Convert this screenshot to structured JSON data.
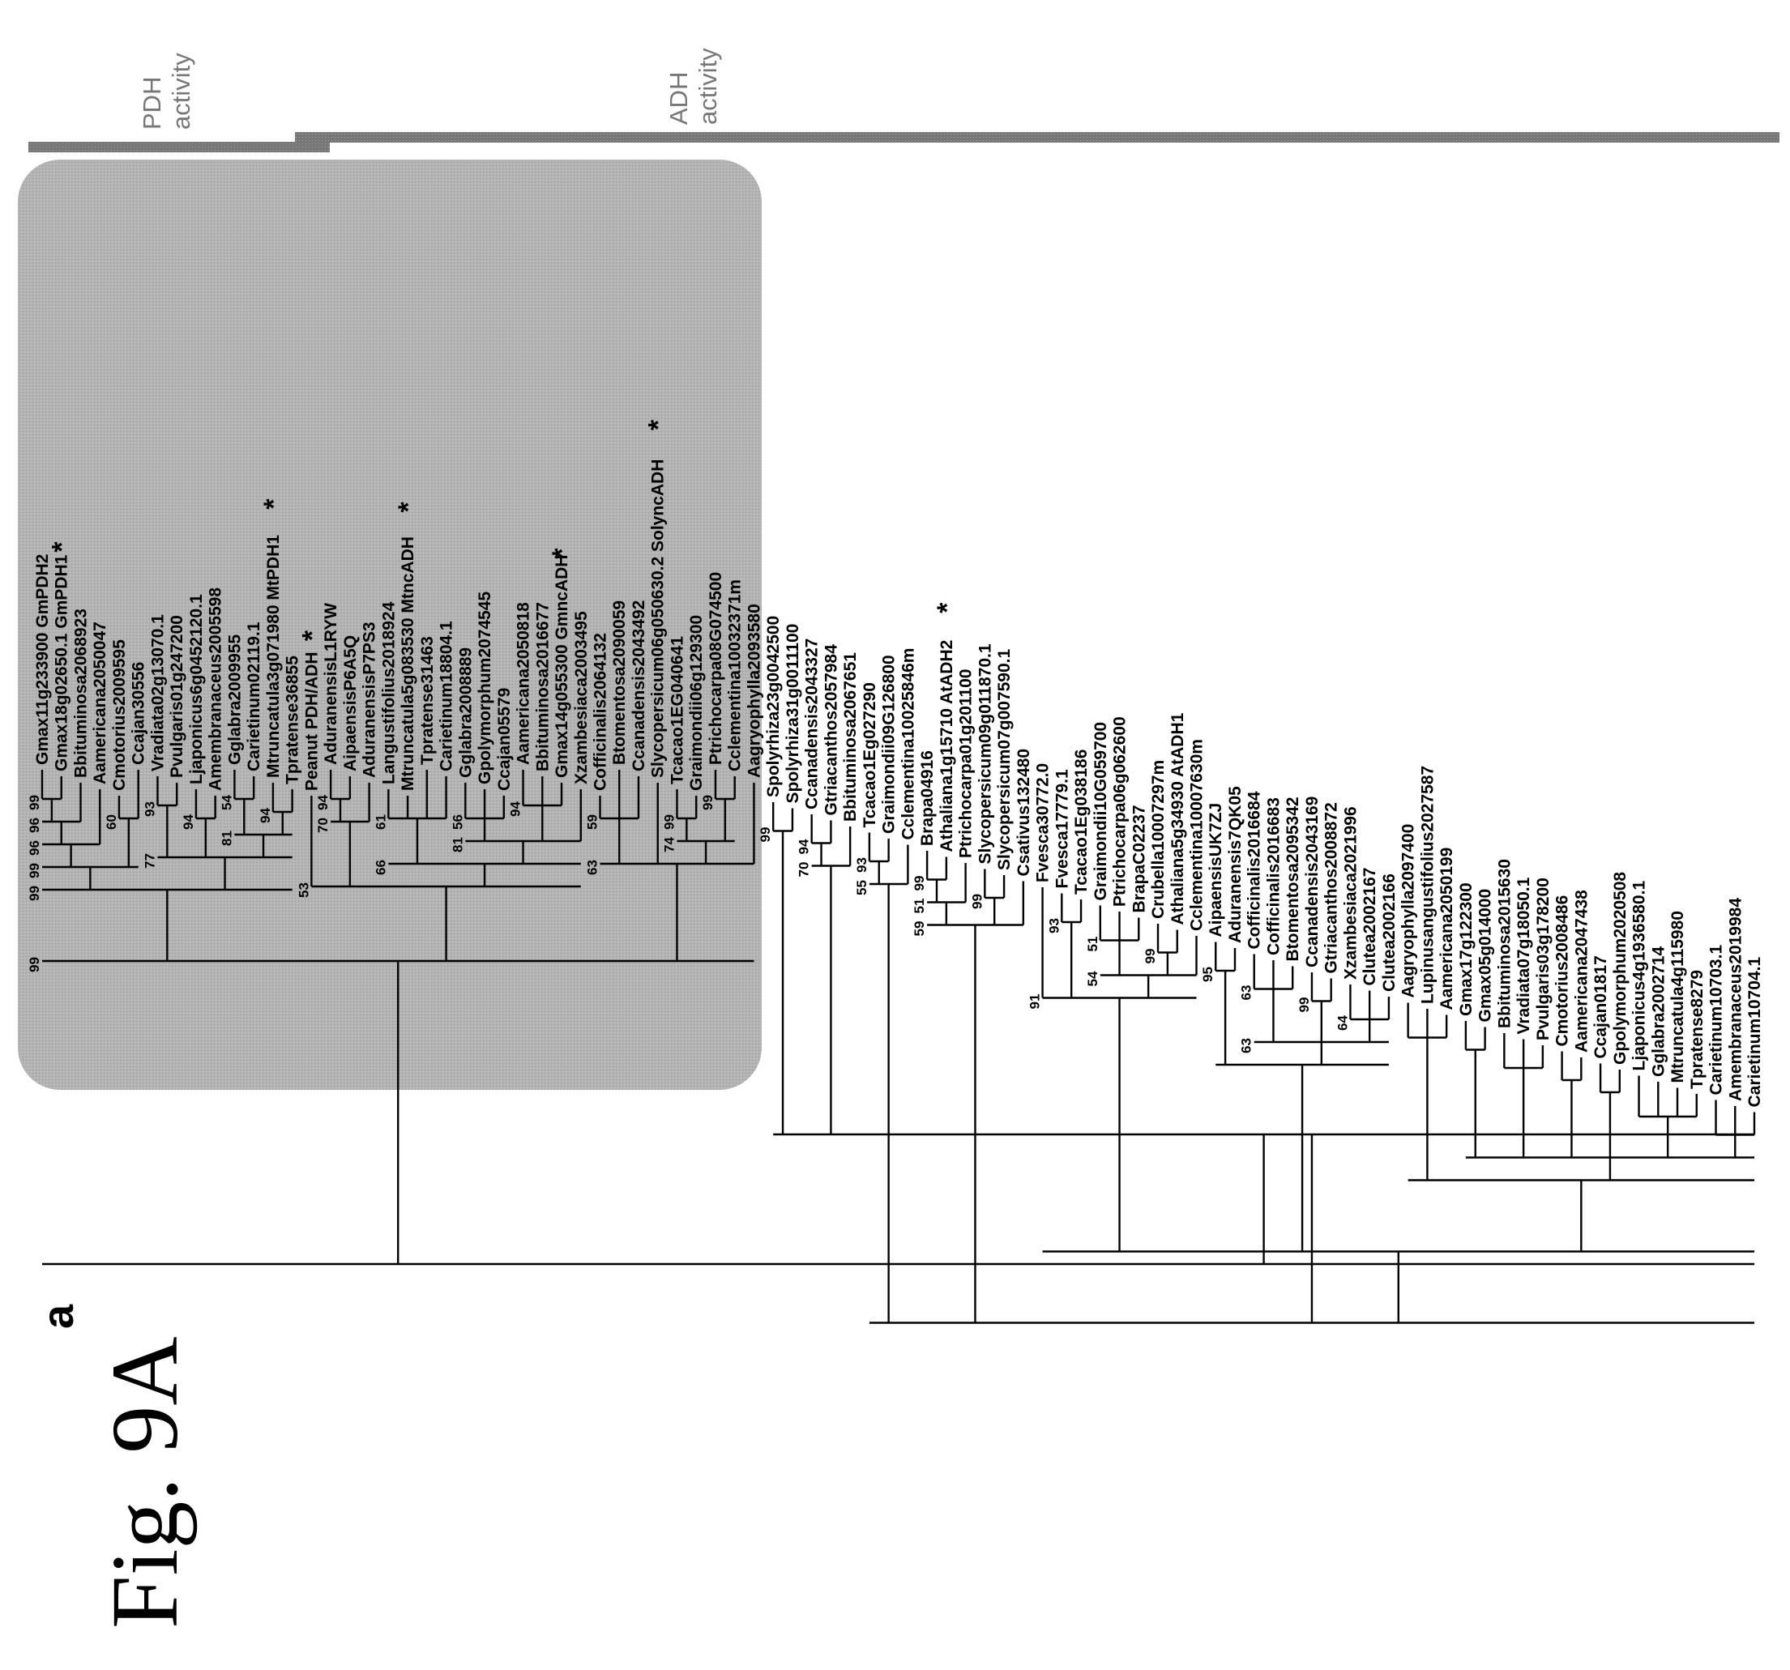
{
  "figure": {
    "caption": "Fig. 9A",
    "panel_label": "a",
    "headers": [
      {
        "line1": "PDH",
        "line2": "activity"
      },
      {
        "line1": "ADH",
        "line2": "activity"
      }
    ],
    "star": "*"
  },
  "tree": {
    "leaves": [
      {
        "label": "Gmax11g233900 GmPDH2"
      },
      {
        "label": "Gmax18g02650.1 GmPDH1",
        "star": true
      },
      {
        "label": "Bbituminosa2068923"
      },
      {
        "label": "Aamericana2050047"
      },
      {
        "label": "Cmotorius2009595"
      },
      {
        "label": "Ccajan30556"
      },
      {
        "label": "Vradiata02g13070.1"
      },
      {
        "label": "Pvulgaris01g247200"
      },
      {
        "label": "Ljaponicus6g0452120.1"
      },
      {
        "label": "Amembranaceus2005598"
      },
      {
        "label": "Gglabra2009955"
      },
      {
        "label": "Carietinum02119.1"
      },
      {
        "label": "Mtruncatula3g071980 MtPDH1",
        "star": true
      },
      {
        "label": "Tpratense36855"
      },
      {
        "label": "Peanut PDH/ADH",
        "star": true
      },
      {
        "label": "AduranensisL1RYW"
      },
      {
        "label": "AipaensisP6A5Q"
      },
      {
        "label": "AduranensisP7PS3"
      },
      {
        "label": "Langustifolius2018924"
      },
      {
        "label": "Mtruncatula5g083530 MtncADH",
        "star": true
      },
      {
        "label": "Tpratense31463"
      },
      {
        "label": "Carietinum18804.1"
      },
      {
        "label": "Gglabra2008889"
      },
      {
        "label": "Gpolymorphum2074545"
      },
      {
        "label": "Ccajan05579"
      },
      {
        "label": "Aamericana2050818"
      },
      {
        "label": "Bbituminosa2016677"
      },
      {
        "label": "Gmax14g055300 GmncADH",
        "star": true
      },
      {
        "label": "Xzambesiaca2003495"
      },
      {
        "label": "Cofficinalis2064132"
      },
      {
        "label": "Btomentosa2090059"
      },
      {
        "label": "Ccanadensis2043492"
      },
      {
        "label": "Slycopersicum06g050630.2 SolyncADH",
        "star": true
      },
      {
        "label": "Tcacao1EG040641"
      },
      {
        "label": "Graimondii06g129300"
      },
      {
        "label": "Ptrichocarpa08G074500"
      },
      {
        "label": "Cclementina10032371m"
      },
      {
        "label": "Aagryophylla2093580"
      },
      {
        "label": "Spolyrhiza23g0042500"
      },
      {
        "label": "Spolyrhiza31g0011100"
      },
      {
        "label": "Ccanadensis2043327"
      },
      {
        "label": "Gtriacanthos2057984"
      },
      {
        "label": "Bbituminosa2067651"
      },
      {
        "label": "Tcacao1Eg027290"
      },
      {
        "label": "Graimondii09G126800"
      },
      {
        "label": "Cclementina10025846m"
      },
      {
        "label": "Brapa04916"
      },
      {
        "label": "Athaliana1g15710 AtADH2",
        "star": true
      },
      {
        "label": "Ptrichocarpa01g201100"
      },
      {
        "label": "Slycopersicum09g011870.1"
      },
      {
        "label": "Slycopersicum07g007590.1"
      },
      {
        "label": "Csativus132480"
      },
      {
        "label": "Fvesca30772.0"
      },
      {
        "label": "Fvesca17779.1"
      },
      {
        "label": "Tcacao1Eg038186"
      },
      {
        "label": "Graimondii10G059700"
      },
      {
        "label": "Ptrichocarpa06g062600"
      },
      {
        "label": "BrapaC02237"
      },
      {
        "label": "Crubella10007297m"
      },
      {
        "label": "Athaliana5g34930 AtADH1"
      },
      {
        "label": "Cclementina10007630m"
      },
      {
        "label": "AipaensisUK7ZJ"
      },
      {
        "label": "Aduranensis7QK05"
      },
      {
        "label": "Cofficinalis2016684"
      },
      {
        "label": "Cofficinalis2016683"
      },
      {
        "label": "Btomentosa2095342"
      },
      {
        "label": "Ccanadensis2043169"
      },
      {
        "label": "Gtriacanthos2008872"
      },
      {
        "label": "Xzambesiaca2021996"
      },
      {
        "label": "Clutea2002167"
      },
      {
        "label": "Clutea2002166"
      },
      {
        "label": "Aagryophylla2097400"
      },
      {
        "label": "Lupinusangustifolius2027587"
      },
      {
        "label": "Aamericana2050199"
      },
      {
        "label": "Gmax17g122300"
      },
      {
        "label": "Gmax05g014000"
      },
      {
        "label": "Bbituminosa2015630"
      },
      {
        "label": "Vradiata07g18050.1"
      },
      {
        "label": "Pvulgaris03g178200"
      },
      {
        "label": "Cmotorius2008486"
      },
      {
        "label": "Aamericana2047438"
      },
      {
        "label": "Ccajan01817"
      },
      {
        "label": "Gpolymorphum2020508"
      },
      {
        "label": "Ljaponicus4g1936580.1"
      },
      {
        "label": "Gglabra2002714"
      },
      {
        "label": "Mtruncatula4g115980"
      },
      {
        "label": "Tpratense8279"
      },
      {
        "label": "Carietinum10703.1"
      },
      {
        "label": "Amembranaceus2019984"
      },
      {
        "label": "Carietinum10704.1"
      }
    ],
    "bootstrap": [
      "99",
      "96",
      "96",
      "60",
      "99",
      "93",
      "94",
      "54",
      "94",
      "81",
      "77",
      "99",
      "94",
      "70",
      "61",
      "56",
      "94",
      "81",
      "66",
      "53",
      "59",
      "99",
      "99",
      "74",
      "63",
      "99",
      "99",
      "94",
      "70",
      "93",
      "55",
      "99",
      "51",
      "99",
      "59",
      "93",
      "51",
      "99",
      "54",
      "91",
      "95",
      "63",
      "99",
      "64",
      "63"
    ]
  }
}
